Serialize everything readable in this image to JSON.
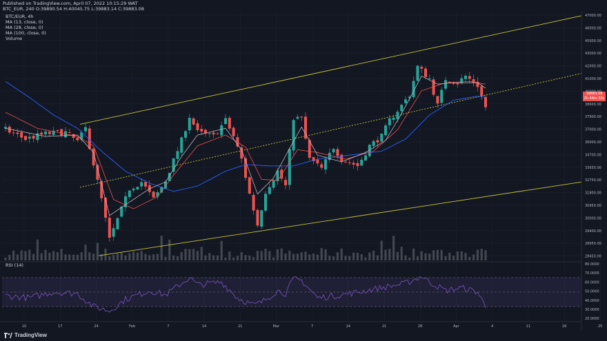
{
  "header": {
    "published": "Published on TradingView.com, April 07, 2022 10:15:29 WAT",
    "ohlc": "BTC_EUR, 240 O:39890.54 H:40045.75 L:39883.14 C:39883.08"
  },
  "legend": {
    "symbol": "BTC/EUR, 4h",
    "ma1": "MA (13, close, 0)",
    "ma2": "MA (28, close, 0)",
    "ma3": "MA (100, close, 0)",
    "volume": "Volume"
  },
  "rsi_label": "RSI (14)",
  "logo_text": "TradingView",
  "price_tags": [
    "39883.08",
    "2h 44m 30s"
  ],
  "colors": {
    "background": "#131722",
    "up": "#26a69a",
    "down": "#ef5350",
    "ma13": "#b8b8c0",
    "ma28": "#ef5350",
    "ma100": "#2962ff",
    "channel": "#c9c83a",
    "rsi": "#7e57c2"
  },
  "chart_data": {
    "type": "line",
    "title": "BTC/EUR, 4h",
    "x_tick_labels": [
      "10",
      "17",
      "24",
      "Feb",
      "7",
      "14",
      "21",
      "Mar",
      "7",
      "14",
      "21",
      "28",
      "Apr",
      "4",
      "11",
      "18",
      "25"
    ],
    "price_axis": [
      "47000.00",
      "46000.00",
      "45000.00",
      "43000.00",
      "42000.00",
      "41000.00",
      "40000.00",
      "38600.00",
      "37900.00",
      "37000.00",
      "36000.00",
      "34700.00",
      "33650.00",
      "32750.00",
      "31800.00",
      "30950.00",
      "30000.00",
      "29400.00",
      "28950.00",
      "28450.00"
    ],
    "rsi_axis": [
      "80.0000",
      "70.0000",
      "60.0000",
      "50.0000",
      "40.0000",
      "30.0000",
      "20.0000"
    ],
    "ylim": [
      28450,
      47000
    ],
    "series": [
      {
        "name": "BTC/EUR",
        "anchors": [
          [
            0,
            38200
          ],
          [
            5,
            37500
          ],
          [
            10,
            37900
          ],
          [
            15,
            38000
          ],
          [
            18,
            37300
          ],
          [
            20,
            38300
          ],
          [
            24,
            33000
          ],
          [
            26,
            30000
          ],
          [
            28,
            31500
          ],
          [
            31,
            33800
          ],
          [
            34,
            34300
          ],
          [
            37,
            33000
          ],
          [
            40,
            34400
          ],
          [
            44,
            37400
          ],
          [
            46,
            39200
          ],
          [
            48,
            38000
          ],
          [
            52,
            37700
          ],
          [
            55,
            38900
          ],
          [
            57,
            37700
          ],
          [
            59,
            36000
          ],
          [
            61,
            33400
          ],
          [
            63,
            31100
          ],
          [
            65,
            33600
          ],
          [
            68,
            35100
          ],
          [
            70,
            34000
          ],
          [
            72,
            39100
          ],
          [
            74,
            39000
          ],
          [
            76,
            36000
          ],
          [
            79,
            35300
          ],
          [
            82,
            36900
          ],
          [
            84,
            36000
          ],
          [
            88,
            35500
          ],
          [
            91,
            37000
          ],
          [
            94,
            37700
          ],
          [
            96,
            38900
          ],
          [
            99,
            40000
          ],
          [
            101,
            40800
          ],
          [
            103,
            42900
          ],
          [
            106,
            42000
          ],
          [
            108,
            40000
          ],
          [
            110,
            42000
          ],
          [
            113,
            41700
          ],
          [
            115,
            42200
          ],
          [
            118,
            41500
          ],
          [
            120,
            39883
          ]
        ]
      },
      {
        "name": "MA (13, close, 0)",
        "anchors": [
          [
            0,
            38300
          ],
          [
            10,
            37700
          ],
          [
            18,
            37800
          ],
          [
            22,
            36500
          ],
          [
            26,
            31800
          ],
          [
            30,
            32600
          ],
          [
            36,
            33800
          ],
          [
            40,
            34300
          ],
          [
            44,
            36200
          ],
          [
            48,
            37800
          ],
          [
            55,
            38300
          ],
          [
            59,
            36700
          ],
          [
            63,
            33400
          ],
          [
            67,
            34600
          ],
          [
            71,
            36800
          ],
          [
            74,
            38400
          ],
          [
            78,
            36300
          ],
          [
            84,
            35800
          ],
          [
            90,
            36500
          ],
          [
            95,
            37400
          ],
          [
            99,
            39400
          ],
          [
            104,
            42200
          ],
          [
            108,
            41600
          ],
          [
            112,
            41700
          ],
          [
            118,
            41700
          ],
          [
            120,
            41300
          ]
        ]
      },
      {
        "name": "MA (28, close, 0)",
        "anchors": [
          [
            0,
            39500
          ],
          [
            8,
            38300
          ],
          [
            18,
            37700
          ],
          [
            22,
            37000
          ],
          [
            27,
            33000
          ],
          [
            32,
            32300
          ],
          [
            38,
            33200
          ],
          [
            42,
            34800
          ],
          [
            48,
            37000
          ],
          [
            55,
            37800
          ],
          [
            60,
            36900
          ],
          [
            64,
            34500
          ],
          [
            68,
            34400
          ],
          [
            73,
            36700
          ],
          [
            78,
            36500
          ],
          [
            85,
            36000
          ],
          [
            92,
            36600
          ],
          [
            98,
            38200
          ],
          [
            104,
            41100
          ],
          [
            110,
            41700
          ],
          [
            116,
            41800
          ],
          [
            120,
            41600
          ]
        ]
      },
      {
        "name": "MA (100, close, 0)",
        "anchors": [
          [
            0,
            41800
          ],
          [
            6,
            40600
          ],
          [
            12,
            39300
          ],
          [
            18,
            38300
          ],
          [
            24,
            36600
          ],
          [
            30,
            35100
          ],
          [
            36,
            34200
          ],
          [
            42,
            33600
          ],
          [
            48,
            34000
          ],
          [
            55,
            35100
          ],
          [
            60,
            35600
          ],
          [
            66,
            35500
          ],
          [
            72,
            35500
          ],
          [
            78,
            36000
          ],
          [
            86,
            36300
          ],
          [
            94,
            36600
          ],
          [
            100,
            37500
          ],
          [
            106,
            39300
          ],
          [
            112,
            40400
          ],
          [
            118,
            40700
          ],
          [
            120,
            40600
          ]
        ]
      },
      {
        "name": "RSI (14)",
        "anchors": [
          [
            0,
            45
          ],
          [
            6,
            42
          ],
          [
            12,
            50
          ],
          [
            18,
            48
          ],
          [
            22,
            30
          ],
          [
            26,
            24
          ],
          [
            30,
            40
          ],
          [
            36,
            52
          ],
          [
            40,
            46
          ],
          [
            44,
            62
          ],
          [
            46,
            70
          ],
          [
            48,
            60
          ],
          [
            54,
            64
          ],
          [
            58,
            42
          ],
          [
            62,
            32
          ],
          [
            64,
            36
          ],
          [
            68,
            52
          ],
          [
            70,
            48
          ],
          [
            72,
            68
          ],
          [
            74,
            66
          ],
          [
            78,
            42
          ],
          [
            84,
            46
          ],
          [
            90,
            52
          ],
          [
            96,
            58
          ],
          [
            100,
            62
          ],
          [
            104,
            72
          ],
          [
            106,
            64
          ],
          [
            110,
            52
          ],
          [
            114,
            56
          ],
          [
            118,
            50
          ],
          [
            120,
            30
          ]
        ]
      }
    ]
  }
}
